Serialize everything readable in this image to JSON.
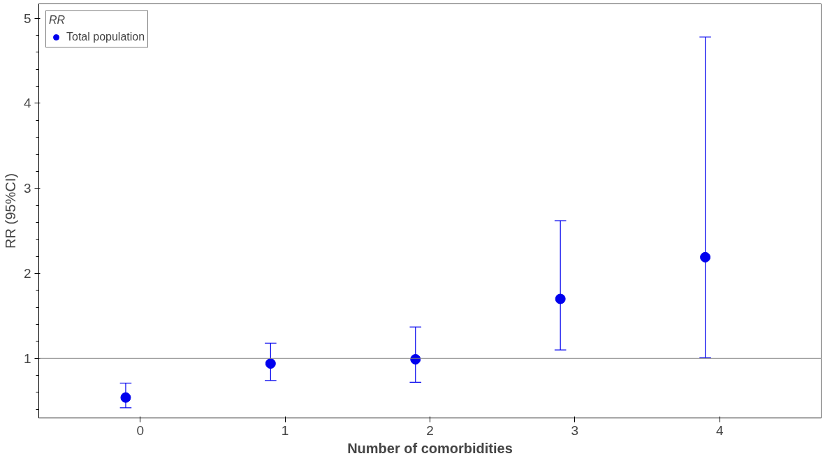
{
  "chart_data": {
    "type": "scatter",
    "xlabel": "Number of comorbidities",
    "ylabel": "RR (95%CI)",
    "legend_title": "RR",
    "x": [
      -0.1,
      0.9,
      1.9,
      2.9,
      3.9
    ],
    "series": [
      {
        "name": "Total population",
        "color": "#0000ee",
        "values": [
          0.54,
          0.94,
          0.99,
          1.7,
          2.19
        ],
        "errors": [
          [
            0.42,
            0.71
          ],
          [
            0.74,
            1.18
          ],
          [
            0.72,
            1.37
          ],
          [
            1.1,
            2.62
          ],
          [
            1.01,
            4.78
          ]
        ]
      }
    ],
    "xlim": [
      -0.7,
      4.7
    ],
    "xticks": [
      0,
      1,
      2,
      3,
      4
    ],
    "ylim": [
      0.3,
      5.17
    ],
    "yticks": [
      1,
      2,
      3,
      4,
      5
    ],
    "ref_lines": [
      {
        "axis": "y",
        "value": 1,
        "color": "#808080"
      }
    ],
    "grid": false,
    "legend": "top left",
    "marker": "circle"
  }
}
